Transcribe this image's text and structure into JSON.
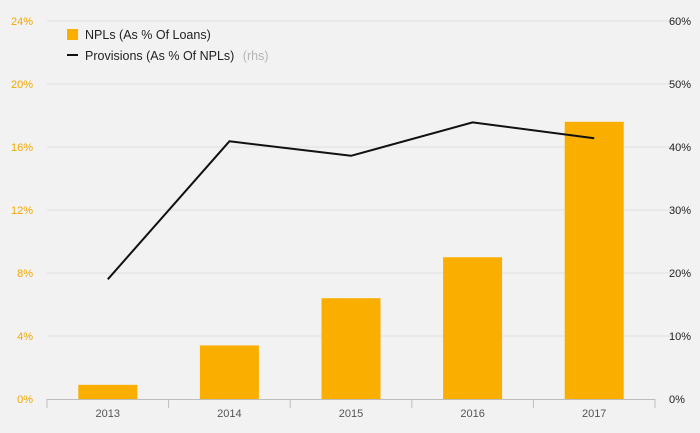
{
  "chart_data": {
    "type": "bar+line",
    "categories": [
      "2013",
      "2014",
      "2015",
      "2016",
      "2017"
    ],
    "series": [
      {
        "name": "NPLs (As % Of Loans)",
        "type": "bar",
        "axis": "left",
        "values": [
          0.9,
          3.4,
          6.4,
          9.0,
          17.6
        ]
      },
      {
        "name": "Provisions (As % Of NPLs)",
        "type": "line",
        "axis": "right",
        "values": [
          19.0,
          40.9,
          38.6,
          43.9,
          41.4
        ]
      }
    ],
    "legend_suffix": "(rhs)",
    "y_left": {
      "ylim": [
        0,
        24
      ],
      "ticks": [
        "0%",
        "4%",
        "8%",
        "12%",
        "16%",
        "20%",
        "24%"
      ]
    },
    "y_right": {
      "ylim": [
        0,
        60
      ],
      "ticks": [
        "0%",
        "10%",
        "20%",
        "30%",
        "40%",
        "50%",
        "60%"
      ]
    },
    "grid": true,
    "legend_position": "top-left",
    "colors": {
      "bar": "#f9ae00",
      "line": "#111111",
      "left_axis_text": "#f0a800",
      "grid": "#e0e0e0",
      "background": "#f2f2f2"
    }
  }
}
